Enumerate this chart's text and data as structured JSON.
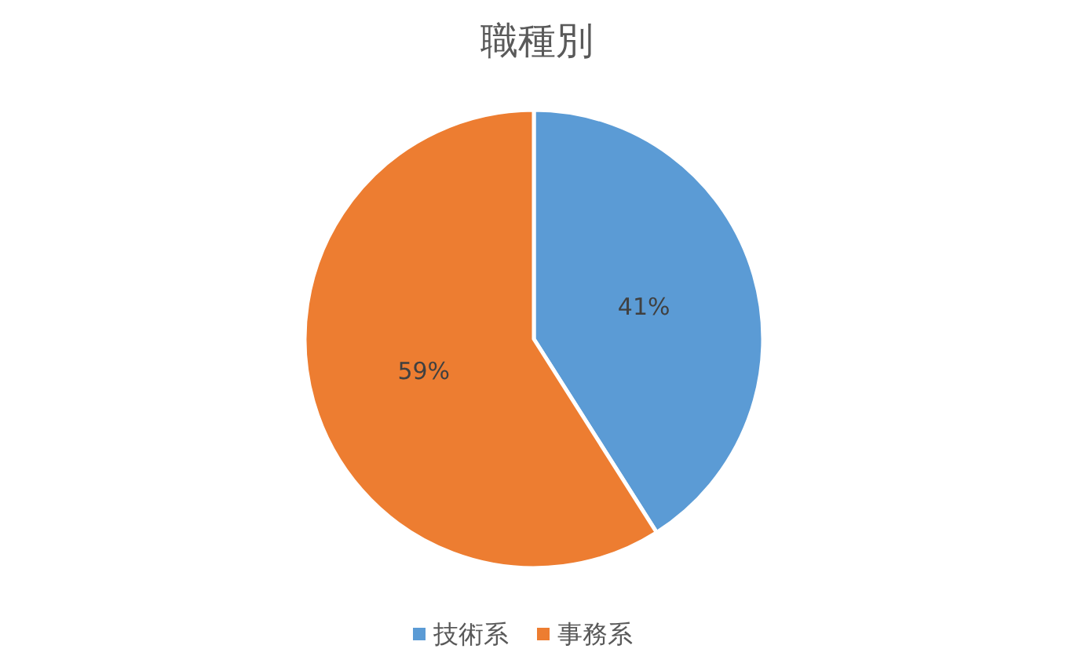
{
  "chart_data": {
    "type": "pie",
    "title": "職種別",
    "categories": [
      "技術系",
      "事務系"
    ],
    "values": [
      41,
      59
    ],
    "colors": [
      "#5b9bd5",
      "#ed7d31"
    ],
    "value_labels": [
      "41%",
      "59%"
    ],
    "legend": "bottom"
  }
}
